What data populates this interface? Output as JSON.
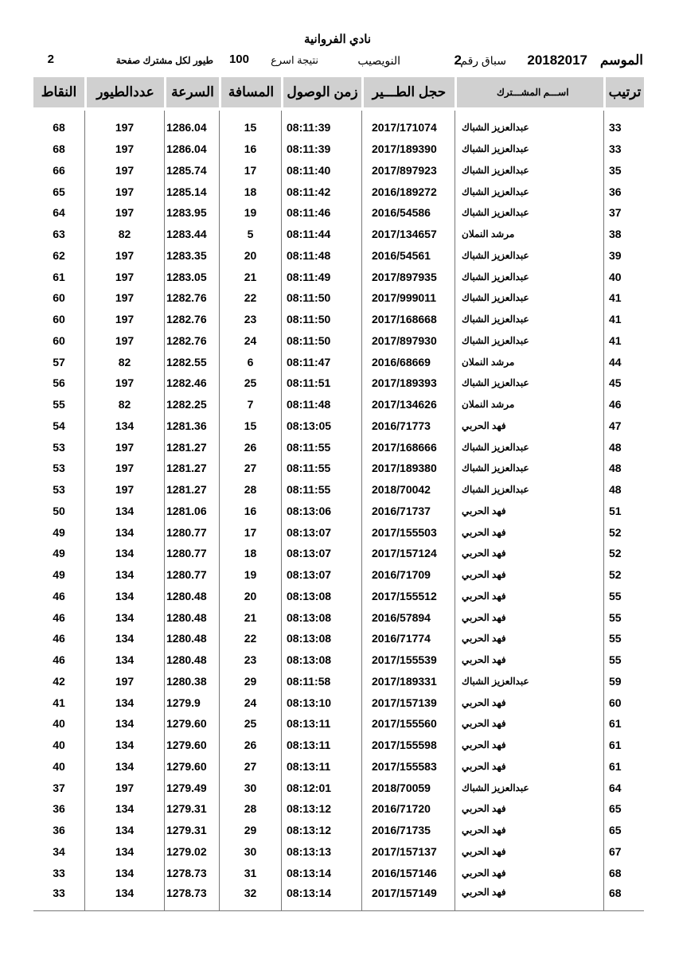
{
  "header": {
    "club": "نادي الفروانية",
    "season_label": "الموسم",
    "season": "20182017",
    "race_label": "سباق رقم",
    "race_no": "2",
    "location": "النويصيب",
    "result_label": "نتيجة اسرع",
    "result_count": "100",
    "per_label": "طيور لكل مشترك صفحة",
    "page": "2"
  },
  "columns": [
    "ترتيب",
    "اســـم المشـــترك",
    "حجل الطـــير",
    "زمن الوصول",
    "المسافة",
    "السرعة",
    "عددالطيور",
    "النقاط"
  ],
  "rows": [
    [
      "33",
      "عبدالعزيز الشباك",
      "2017/171074",
      "08:11:39",
      "15",
      "1286.04",
      "197",
      "68"
    ],
    [
      "33",
      "عبدالعزيز الشباك",
      "2017/189390",
      "08:11:39",
      "16",
      "1286.04",
      "197",
      "68"
    ],
    [
      "35",
      "عبدالعزيز الشباك",
      "2017/897923",
      "08:11:40",
      "17",
      "1285.74",
      "197",
      "66"
    ],
    [
      "36",
      "عبدالعزيز الشباك",
      "2016/189272",
      "08:11:42",
      "18",
      "1285.14",
      "197",
      "65"
    ],
    [
      "37",
      "عبدالعزيز الشباك",
      "2016/54586",
      "08:11:46",
      "19",
      "1283.95",
      "197",
      "64"
    ],
    [
      "38",
      "مرشد النملان",
      "2017/134657",
      "08:11:44",
      "5",
      "1283.44",
      "82",
      "63"
    ],
    [
      "39",
      "عبدالعزيز الشباك",
      "2016/54561",
      "08:11:48",
      "20",
      "1283.35",
      "197",
      "62"
    ],
    [
      "40",
      "عبدالعزيز الشباك",
      "2017/897935",
      "08:11:49",
      "21",
      "1283.05",
      "197",
      "61"
    ],
    [
      "41",
      "عبدالعزيز الشباك",
      "2017/999011",
      "08:11:50",
      "22",
      "1282.76",
      "197",
      "60"
    ],
    [
      "41",
      "عبدالعزيز الشباك",
      "2017/168668",
      "08:11:50",
      "23",
      "1282.76",
      "197",
      "60"
    ],
    [
      "41",
      "عبدالعزيز الشباك",
      "2017/897930",
      "08:11:50",
      "24",
      "1282.76",
      "197",
      "60"
    ],
    [
      "44",
      "مرشد النملان",
      "2016/68669",
      "08:11:47",
      "6",
      "1282.55",
      "82",
      "57"
    ],
    [
      "45",
      "عبدالعزيز الشباك",
      "2017/189393",
      "08:11:51",
      "25",
      "1282.46",
      "197",
      "56"
    ],
    [
      "46",
      "مرشد النملان",
      "2017/134626",
      "08:11:48",
      "7",
      "1282.25",
      "82",
      "55"
    ],
    [
      "47",
      "فهد الحربي",
      "2016/71773",
      "08:13:05",
      "15",
      "1281.36",
      "134",
      "54"
    ],
    [
      "48",
      "عبدالعزيز الشباك",
      "2017/168666",
      "08:11:55",
      "26",
      "1281.27",
      "197",
      "53"
    ],
    [
      "48",
      "عبدالعزيز الشباك",
      "2017/189380",
      "08:11:55",
      "27",
      "1281.27",
      "197",
      "53"
    ],
    [
      "48",
      "عبدالعزيز الشباك",
      "2018/70042",
      "08:11:55",
      "28",
      "1281.27",
      "197",
      "53"
    ],
    [
      "51",
      "فهد الحربي",
      "2016/71737",
      "08:13:06",
      "16",
      "1281.06",
      "134",
      "50"
    ],
    [
      "52",
      "فهد الحربي",
      "2017/155503",
      "08:13:07",
      "17",
      "1280.77",
      "134",
      "49"
    ],
    [
      "52",
      "فهد الحربي",
      "2017/157124",
      "08:13:07",
      "18",
      "1280.77",
      "134",
      "49"
    ],
    [
      "52",
      "فهد الحربي",
      "2016/71709",
      "08:13:07",
      "19",
      "1280.77",
      "134",
      "49"
    ],
    [
      "55",
      "فهد الحربي",
      "2017/155512",
      "08:13:08",
      "20",
      "1280.48",
      "134",
      "46"
    ],
    [
      "55",
      "فهد الحربي",
      "2016/57894",
      "08:13:08",
      "21",
      "1280.48",
      "134",
      "46"
    ],
    [
      "55",
      "فهد الحربي",
      "2016/71774",
      "08:13:08",
      "22",
      "1280.48",
      "134",
      "46"
    ],
    [
      "55",
      "فهد الحربي",
      "2017/155539",
      "08:13:08",
      "23",
      "1280.48",
      "134",
      "46"
    ],
    [
      "59",
      "عبدالعزيز الشباك",
      "2017/189331",
      "08:11:58",
      "29",
      "1280.38",
      "197",
      "42"
    ],
    [
      "60",
      "فهد الحربي",
      "2017/157139",
      "08:13:10",
      "24",
      "1279.9",
      "134",
      "41"
    ],
    [
      "61",
      "فهد الحربي",
      "2017/155560",
      "08:13:11",
      "25",
      "1279.60",
      "134",
      "40"
    ],
    [
      "61",
      "فهد الحربي",
      "2017/155598",
      "08:13:11",
      "26",
      "1279.60",
      "134",
      "40"
    ],
    [
      "61",
      "فهد الحربي",
      "2017/155583",
      "08:13:11",
      "27",
      "1279.60",
      "134",
      "40"
    ],
    [
      "64",
      "عبدالعزيز الشباك",
      "2018/70059",
      "08:12:01",
      "30",
      "1279.49",
      "197",
      "37"
    ],
    [
      "65",
      "فهد الحربي",
      "2016/71720",
      "08:13:12",
      "28",
      "1279.31",
      "134",
      "36"
    ],
    [
      "65",
      "فهد الحربي",
      "2016/71735",
      "08:13:12",
      "29",
      "1279.31",
      "134",
      "36"
    ],
    [
      "67",
      "فهد الحربي",
      "2017/157137",
      "08:13:13",
      "30",
      "1279.02",
      "134",
      "34"
    ],
    [
      "68",
      "فهد الحربي",
      "2016/157146",
      "08:13:14",
      "31",
      "1278.73",
      "134",
      "33"
    ],
    [
      "68",
      "فهد الحربي",
      "2017/157149",
      "08:13:14",
      "32",
      "1278.73",
      "134",
      "33"
    ]
  ]
}
